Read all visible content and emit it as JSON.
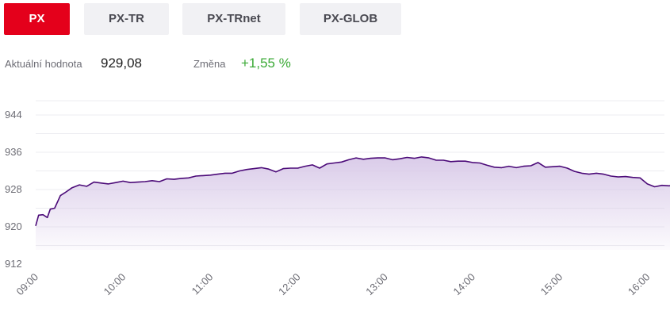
{
  "tabs": [
    {
      "label": "PX",
      "active": true
    },
    {
      "label": "PX-TR",
      "active": false
    },
    {
      "label": "PX-TRnet",
      "active": false
    },
    {
      "label": "PX-GLOB",
      "active": false
    }
  ],
  "stats": {
    "current_label": "Aktuální hodnota",
    "current_value": "929,08",
    "change_label": "Změna",
    "change_value": "+1,55 %"
  },
  "colors": {
    "accent_red": "#e4001b",
    "line": "#4b0a78",
    "fill_top": "#d8c9e8",
    "change_green": "#3aa935"
  },
  "chart_data": {
    "type": "area",
    "title": "",
    "xlabel": "",
    "ylabel": "",
    "ylim": [
      912,
      944
    ],
    "yticks": [
      "944",
      "936",
      "928",
      "920",
      "912"
    ],
    "xticks": [
      "09:00",
      "10:00",
      "11:00",
      "12:00",
      "13:00",
      "14:00",
      "15:00",
      "16:00"
    ],
    "xlim": [
      "09:00",
      "16:25"
    ],
    "series": [
      {
        "x": [
          "09:00",
          "09:02",
          "09:05",
          "09:08",
          "09:10",
          "09:13",
          "09:17",
          "09:20",
          "09:25",
          "09:30",
          "09:35",
          "09:40",
          "09:45",
          "09:50",
          "09:55",
          "10:00",
          "10:05",
          "10:10",
          "10:15",
          "10:20",
          "10:25",
          "10:30",
          "10:35",
          "10:40",
          "10:45",
          "10:50",
          "10:55",
          "11:00",
          "11:05",
          "11:10",
          "11:15",
          "11:20",
          "11:25",
          "11:30",
          "11:35",
          "11:40",
          "11:45",
          "11:50",
          "11:55",
          "12:00",
          "12:05",
          "12:10",
          "12:15",
          "12:20",
          "12:25",
          "12:30",
          "12:35",
          "12:40",
          "12:45",
          "12:50",
          "12:55",
          "13:00",
          "13:05",
          "13:10",
          "13:15",
          "13:20",
          "13:25",
          "13:30",
          "13:35",
          "13:40",
          "13:45",
          "13:50",
          "13:55",
          "14:00",
          "14:05",
          "14:10",
          "14:15",
          "14:20",
          "14:25",
          "14:30",
          "14:35",
          "14:40",
          "14:45",
          "14:50",
          "14:55",
          "15:00",
          "15:05",
          "15:10",
          "15:15",
          "15:20",
          "15:25",
          "15:30",
          "15:35",
          "15:40",
          "15:45",
          "15:50",
          "15:55",
          "16:00",
          "16:05",
          "16:10",
          "16:15",
          "16:20",
          "16:25"
        ],
        "values": [
          920.2,
          922.5,
          922.6,
          922.0,
          923.8,
          924.0,
          926.7,
          927.3,
          928.4,
          929.0,
          928.7,
          929.6,
          929.4,
          929.2,
          929.5,
          929.8,
          929.5,
          929.6,
          929.7,
          929.9,
          929.7,
          930.3,
          930.2,
          930.4,
          930.5,
          930.9,
          931.0,
          931.1,
          931.3,
          931.5,
          931.5,
          932.0,
          932.3,
          932.5,
          932.7,
          932.4,
          931.8,
          932.5,
          932.6,
          932.6,
          933.0,
          933.3,
          932.6,
          933.5,
          933.7,
          933.9,
          934.4,
          934.8,
          934.5,
          934.7,
          934.8,
          934.8,
          934.4,
          934.6,
          934.9,
          934.7,
          935.0,
          934.8,
          934.3,
          934.3,
          934.0,
          934.1,
          934.1,
          933.8,
          933.7,
          933.2,
          932.8,
          932.7,
          933.0,
          932.7,
          933.0,
          933.1,
          933.8,
          932.8,
          932.9,
          933.0,
          932.6,
          931.9,
          931.5,
          931.3,
          931.5,
          931.3,
          930.9,
          930.7,
          930.8,
          930.6,
          930.5,
          929.2,
          928.6,
          928.9,
          928.8,
          929.2,
          929.1
        ]
      }
    ]
  }
}
